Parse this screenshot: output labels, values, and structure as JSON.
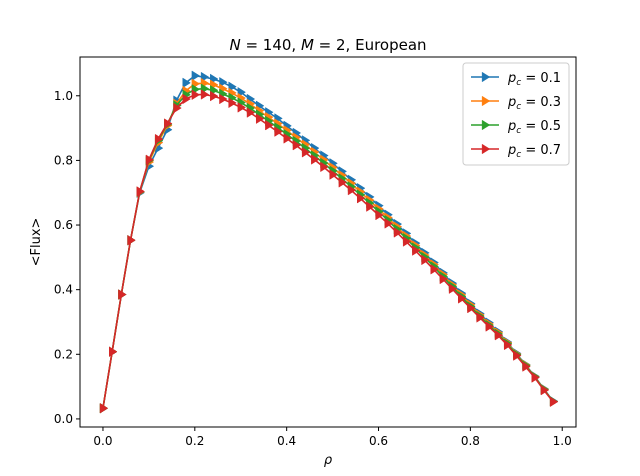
{
  "chart_data": {
    "type": "line",
    "title": "N=140, M=2, European",
    "xlabel": "ρ",
    "ylabel": "<Flux>",
    "xlim": [
      -0.05,
      1.03
    ],
    "ylim": [
      -0.025,
      1.12
    ],
    "xticks": [
      0.0,
      0.2,
      0.4,
      0.6,
      0.8,
      1.0
    ],
    "xtick_labels": [
      "0.0",
      "0.2",
      "0.4",
      "0.6",
      "0.8",
      "1.0"
    ],
    "yticks": [
      0.0,
      0.2,
      0.4,
      0.6,
      0.8,
      1.0
    ],
    "ytick_labels": [
      "0.0",
      "0.2",
      "0.4",
      "0.6",
      "0.8",
      "1.0"
    ],
    "grid": false,
    "legend_position": "top-right",
    "marker": "triangle-right",
    "x": [
      0.0,
      0.02,
      0.04,
      0.06,
      0.08,
      0.1,
      0.12,
      0.14,
      0.16,
      0.18,
      0.2,
      0.22,
      0.24,
      0.26,
      0.28,
      0.3,
      0.32,
      0.34,
      0.36,
      0.38,
      0.4,
      0.42,
      0.44,
      0.46,
      0.48,
      0.5,
      0.52,
      0.54,
      0.56,
      0.58,
      0.6,
      0.62,
      0.64,
      0.66,
      0.68,
      0.7,
      0.72,
      0.74,
      0.76,
      0.78,
      0.8,
      0.82,
      0.84,
      0.86,
      0.88,
      0.9,
      0.92,
      0.94,
      0.96,
      0.98
    ],
    "series": [
      {
        "name": "p_c=0.1",
        "label_main": "p",
        "label_sub": "c",
        "label_rest": " = 0.1",
        "color": "#1f77b4",
        "values": [
          0.033,
          0.208,
          0.385,
          0.553,
          0.7,
          0.782,
          0.838,
          0.895,
          0.985,
          1.04,
          1.062,
          1.058,
          1.052,
          1.042,
          1.028,
          1.011,
          0.99,
          0.969,
          0.949,
          0.93,
          0.907,
          0.885,
          0.862,
          0.838,
          0.815,
          0.791,
          0.766,
          0.74,
          0.714,
          0.687,
          0.66,
          0.632,
          0.603,
          0.574,
          0.544,
          0.514,
          0.484,
          0.452,
          0.42,
          0.389,
          0.357,
          0.326,
          0.298,
          0.27,
          0.238,
          0.203,
          0.168,
          0.132,
          0.093,
          0.055
        ]
      },
      {
        "name": "p_c=0.3",
        "label_main": "p",
        "label_sub": "c",
        "label_rest": " = 0.3",
        "color": "#ff7f0e",
        "values": [
          0.033,
          0.208,
          0.385,
          0.553,
          0.702,
          0.795,
          0.855,
          0.908,
          0.975,
          1.015,
          1.037,
          1.039,
          1.034,
          1.022,
          1.009,
          0.993,
          0.975,
          0.954,
          0.934,
          0.914,
          0.893,
          0.871,
          0.849,
          0.826,
          0.802,
          0.778,
          0.754,
          0.729,
          0.703,
          0.677,
          0.65,
          0.623,
          0.595,
          0.566,
          0.537,
          0.507,
          0.478,
          0.447,
          0.415,
          0.384,
          0.353,
          0.322,
          0.294,
          0.267,
          0.236,
          0.201,
          0.167,
          0.131,
          0.092,
          0.054
        ]
      },
      {
        "name": "p_c=0.5",
        "label_main": "p",
        "label_sub": "c",
        "label_rest": " = 0.5",
        "color": "#2ca02c",
        "values": [
          0.033,
          0.208,
          0.385,
          0.553,
          0.703,
          0.8,
          0.862,
          0.912,
          0.97,
          1.003,
          1.02,
          1.022,
          1.017,
          1.006,
          0.994,
          0.979,
          0.962,
          0.942,
          0.922,
          0.902,
          0.881,
          0.86,
          0.838,
          0.815,
          0.792,
          0.768,
          0.744,
          0.719,
          0.694,
          0.668,
          0.642,
          0.615,
          0.587,
          0.559,
          0.53,
          0.501,
          0.472,
          0.441,
          0.41,
          0.379,
          0.348,
          0.318,
          0.29,
          0.263,
          0.233,
          0.199,
          0.165,
          0.13,
          0.091,
          0.054
        ]
      },
      {
        "name": "p_c=0.7",
        "label_main": "p",
        "label_sub": "c",
        "label_rest": " = 0.7",
        "color": "#d62728",
        "values": [
          0.033,
          0.208,
          0.385,
          0.553,
          0.704,
          0.802,
          0.866,
          0.914,
          0.962,
          0.99,
          1.003,
          1.004,
          0.999,
          0.99,
          0.978,
          0.964,
          0.948,
          0.929,
          0.909,
          0.889,
          0.868,
          0.847,
          0.825,
          0.803,
          0.78,
          0.756,
          0.732,
          0.708,
          0.683,
          0.657,
          0.631,
          0.605,
          0.577,
          0.549,
          0.521,
          0.492,
          0.463,
          0.433,
          0.403,
          0.373,
          0.343,
          0.314,
          0.286,
          0.259,
          0.229,
          0.196,
          0.162,
          0.128,
          0.089,
          0.053
        ]
      }
    ]
  }
}
